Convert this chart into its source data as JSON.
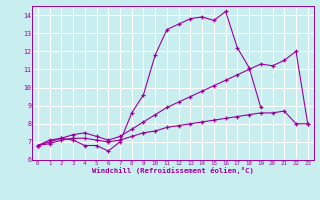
{
  "xlabel": "Windchill (Refroidissement éolien,°C)",
  "bg_color": "#c8eef0",
  "line_color": "#9b009b",
  "grid_color": "#ffffff",
  "xlim": [
    -0.5,
    23.5
  ],
  "ylim": [
    6.0,
    14.5
  ],
  "xticks": [
    0,
    1,
    2,
    3,
    4,
    5,
    6,
    7,
    8,
    9,
    10,
    11,
    12,
    13,
    14,
    15,
    16,
    17,
    18,
    19,
    20,
    21,
    22,
    23
  ],
  "yticks": [
    6,
    7,
    8,
    9,
    10,
    11,
    12,
    13,
    14
  ],
  "line1_x": [
    0,
    1,
    2,
    3,
    4,
    5,
    6,
    7,
    8,
    9,
    10,
    11,
    12,
    13,
    14,
    15,
    16,
    17,
    18,
    19
  ],
  "line1_y": [
    6.8,
    7.1,
    7.2,
    7.1,
    6.8,
    6.8,
    6.5,
    7.0,
    8.6,
    9.6,
    11.8,
    13.2,
    13.5,
    13.8,
    13.9,
    13.7,
    14.2,
    12.2,
    11.1,
    8.9
  ],
  "line2_x": [
    0,
    1,
    2,
    3,
    4,
    5,
    6,
    7,
    8,
    9,
    10,
    11,
    12,
    13,
    14,
    15,
    16,
    17,
    18,
    19,
    20,
    21,
    22,
    23
  ],
  "line2_y": [
    6.8,
    7.0,
    7.2,
    7.4,
    7.5,
    7.3,
    7.1,
    7.3,
    7.7,
    8.1,
    8.5,
    8.9,
    9.2,
    9.5,
    9.8,
    10.1,
    10.4,
    10.7,
    11.0,
    11.3,
    11.2,
    11.5,
    12.0,
    8.0
  ],
  "line3_x": [
    0,
    1,
    2,
    3,
    4,
    5,
    6,
    7,
    8,
    9,
    10,
    11,
    12,
    13,
    14,
    15,
    16,
    17,
    18,
    19,
    20,
    21,
    22,
    23
  ],
  "line3_y": [
    6.8,
    6.9,
    7.1,
    7.2,
    7.2,
    7.1,
    7.0,
    7.1,
    7.3,
    7.5,
    7.6,
    7.8,
    7.9,
    8.0,
    8.1,
    8.2,
    8.3,
    8.4,
    8.5,
    8.6,
    8.6,
    8.7,
    8.0,
    8.0
  ]
}
